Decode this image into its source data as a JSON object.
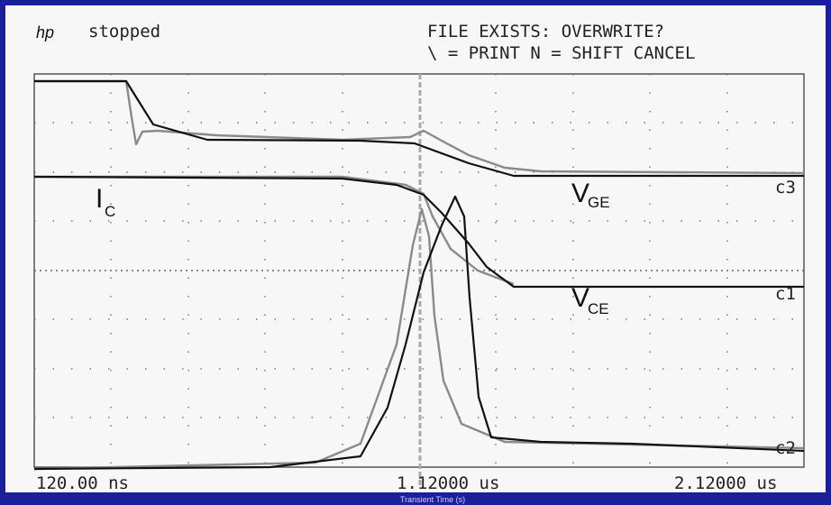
{
  "header": {
    "logo": "hp",
    "status": "stopped",
    "prompt": "FILE EXISTS: OVERWRITE?",
    "keys": "\\ = PRINT N = SHIFT CANCEL"
  },
  "traces": [
    {
      "name": "I",
      "sub": "C"
    },
    {
      "name": "V",
      "sub": "GE"
    },
    {
      "name": "V",
      "sub": "CE"
    }
  ],
  "channels": [
    "c3",
    "c1",
    "c2"
  ],
  "time_labels": [
    "120.00 ns",
    "1.12000 us",
    "2.12000 us"
  ],
  "footer": "Transient Time (s)"
}
